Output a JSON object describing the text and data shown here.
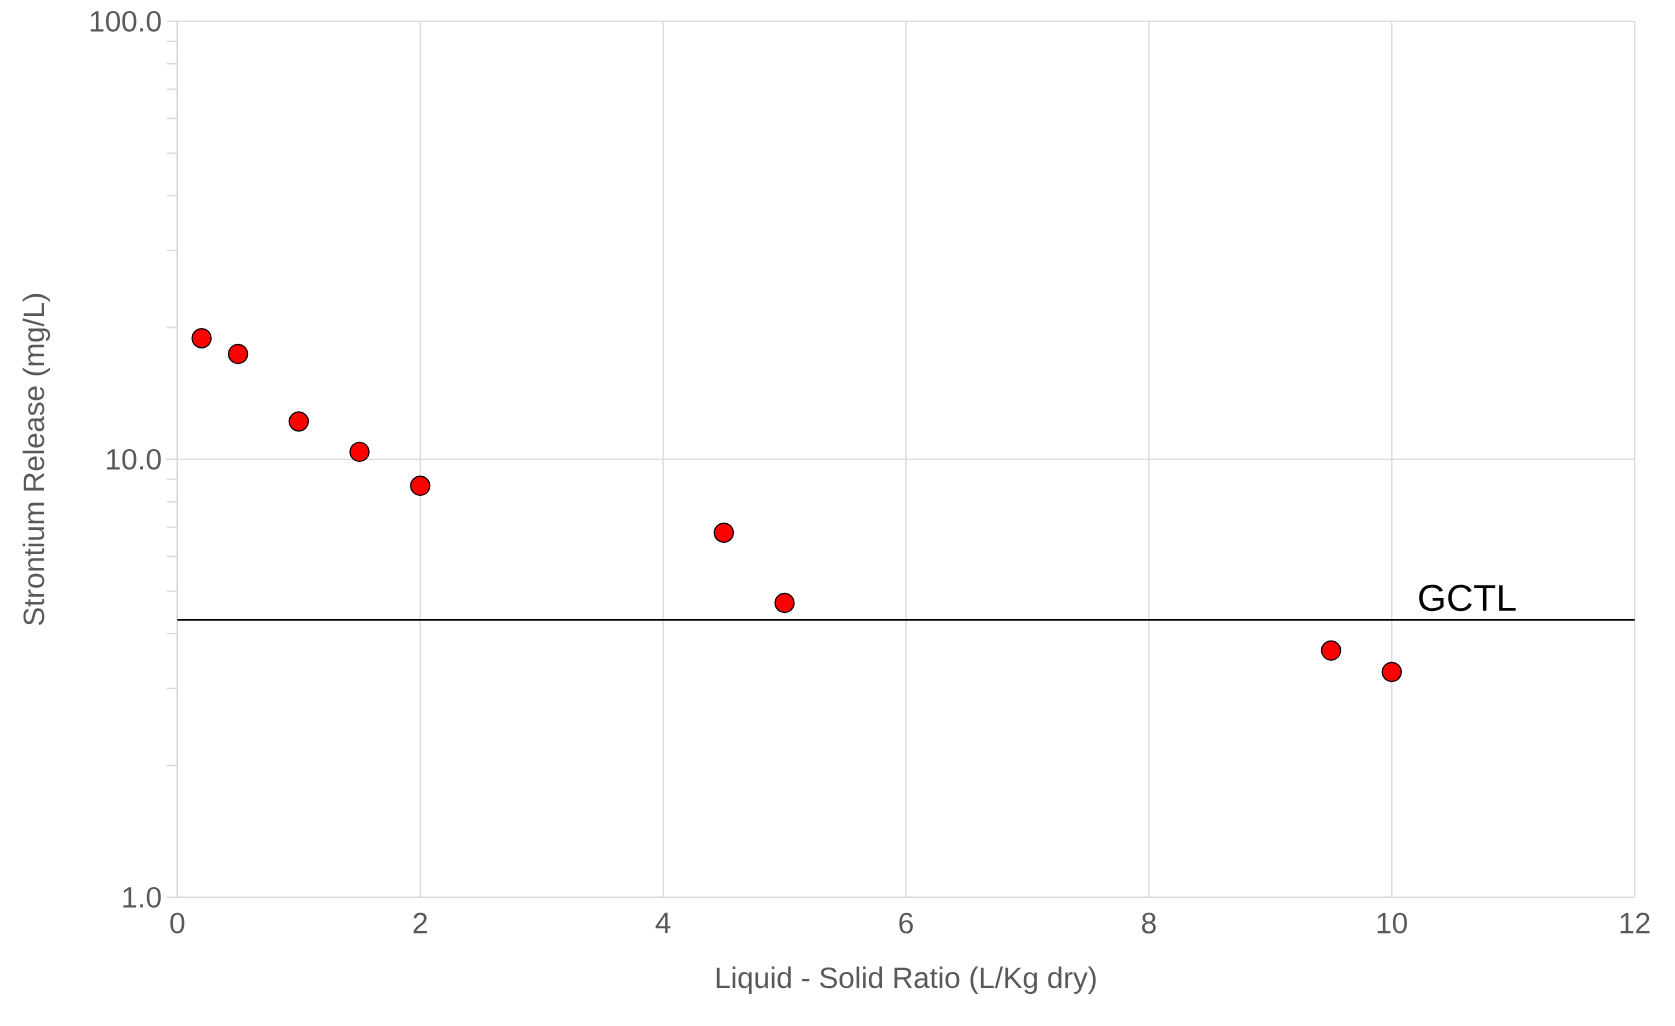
{
  "chart_data": {
    "type": "scatter",
    "xlabel": "Liquid - Solid Ratio  (L/Kg dry)",
    "ylabel": "Strontium Release  (mg/L)",
    "x": [
      0.2,
      0.5,
      1.0,
      1.5,
      2.0,
      4.5,
      5.0,
      9.5,
      10.0
    ],
    "series": [
      {
        "color": "#ff0000",
        "values": [
          18.9,
          17.4,
          12.2,
          10.4,
          8.7,
          6.8,
          4.7,
          3.66,
          3.27
        ]
      }
    ],
    "xlim": [
      0,
      12
    ],
    "xticks": [
      0,
      2,
      4,
      6,
      8,
      10,
      12
    ],
    "ylim": [
      1,
      100
    ],
    "yticks": [
      {
        "value": 1,
        "label": "1.0"
      },
      {
        "value": 10,
        "label": "10.0"
      },
      {
        "value": 100,
        "label": "100.0"
      }
    ],
    "log": "y",
    "grid": true,
    "marker": "circle",
    "ref_lines": [
      {
        "axis": "y",
        "value": 4.3,
        "label": "GCTL",
        "color": "#000000"
      }
    ]
  }
}
